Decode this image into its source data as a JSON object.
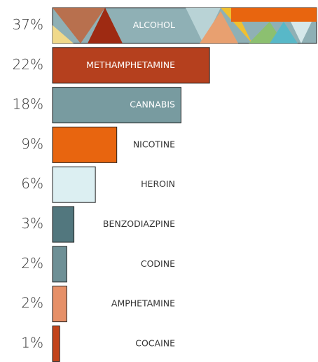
{
  "chart_data": {
    "type": "bar",
    "orientation": "horizontal",
    "categories": [
      "ALCOHOL",
      "METHAMPHETAMINE",
      "CANNABIS",
      "NICOTINE",
      "HEROIN",
      "BENZODIAZPINE",
      "CODINE",
      "AMPHETAMINE",
      "COCAINE"
    ],
    "values": [
      37,
      22,
      18,
      9,
      6,
      3,
      2,
      2,
      1
    ],
    "value_labels": [
      "37%",
      "22%",
      "18%",
      "9%",
      "6%",
      "3%",
      "2%",
      "2%",
      "1%"
    ],
    "colors": [
      "#8fb0b5",
      "#b5401e",
      "#789ba0",
      "#e8650f",
      "#dceff2",
      "#52777e",
      "#6e9096",
      "#e69068",
      "#c2441b"
    ],
    "xlim": [
      0,
      37
    ]
  }
}
